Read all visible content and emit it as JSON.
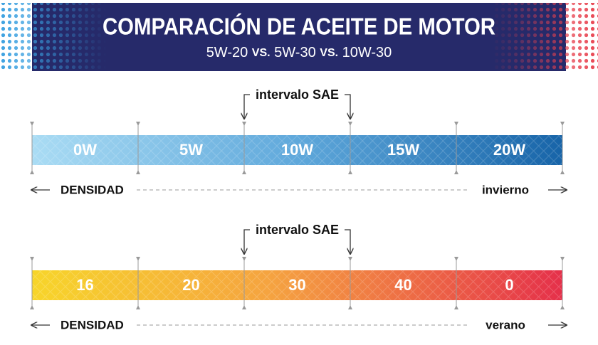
{
  "header": {
    "title": "COMPARACIÓN DE ACEITE DE MOTOR",
    "subtitle": [
      "5W-20",
      "VS.",
      "5W-30",
      "VS.",
      "10W-30"
    ]
  },
  "scales": [
    {
      "interval_label": "intervalo SAE",
      "segments": [
        "0W",
        "5W",
        "10W",
        "15W",
        "20W"
      ],
      "left_label": "DENSIDAD",
      "right_label": "invierno"
    },
    {
      "interval_label": "intervalo SAE",
      "segments": [
        "16",
        "20",
        "30",
        "40",
        "0"
      ],
      "left_label": "DENSIDAD",
      "right_label": "verano"
    }
  ]
}
